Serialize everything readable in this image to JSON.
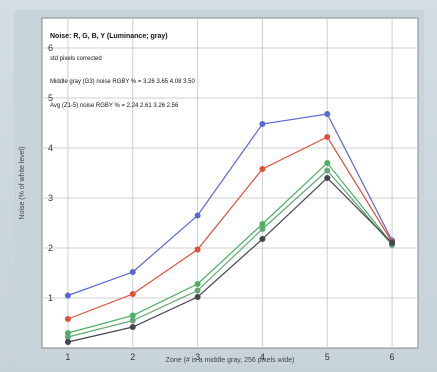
{
  "chart_data": {
    "type": "line",
    "title": "",
    "xlabel": "Zone (# is a middle gray, 256 pixels wide)",
    "ylabel": "Noise (% of white level)",
    "x": [
      1,
      2,
      3,
      4,
      5,
      6
    ],
    "xlim": [
      0.6,
      6.4
    ],
    "ylim": [
      0,
      6.6
    ],
    "xticks": [
      "1",
      "2",
      "3",
      "4",
      "5",
      "6"
    ],
    "yticks": [
      "1",
      "2",
      "3",
      "4",
      "5",
      "6"
    ],
    "grid": true,
    "series": [
      {
        "color": "#5a67d8",
        "values": [
          1.05,
          1.52,
          2.65,
          4.48,
          4.68,
          2.15
        ]
      },
      {
        "color": "#e0503a",
        "values": [
          0.58,
          1.08,
          1.97,
          3.58,
          4.22,
          2.12
        ]
      },
      {
        "color": "#48b060",
        "values": [
          0.3,
          0.65,
          1.28,
          2.48,
          3.7,
          2.08
        ]
      },
      {
        "color": "#62a874",
        "values": [
          0.22,
          0.55,
          1.15,
          2.38,
          3.55,
          2.06
        ]
      },
      {
        "color": "#45454f",
        "values": [
          0.12,
          0.42,
          1.02,
          2.18,
          3.4,
          2.1
        ]
      }
    ],
    "annotations": {
      "title": "Noise: R, G, B, Y (Luminance; gray)",
      "line1": "std pixels corrected",
      "line2": "Middle gray (G3) noise RGBY % = 3.26 3.65 4.08 3.50",
      "line3": "Avg (Z1-5) noise RGBY % = 2.24 2.61 3.26 2.56"
    }
  }
}
